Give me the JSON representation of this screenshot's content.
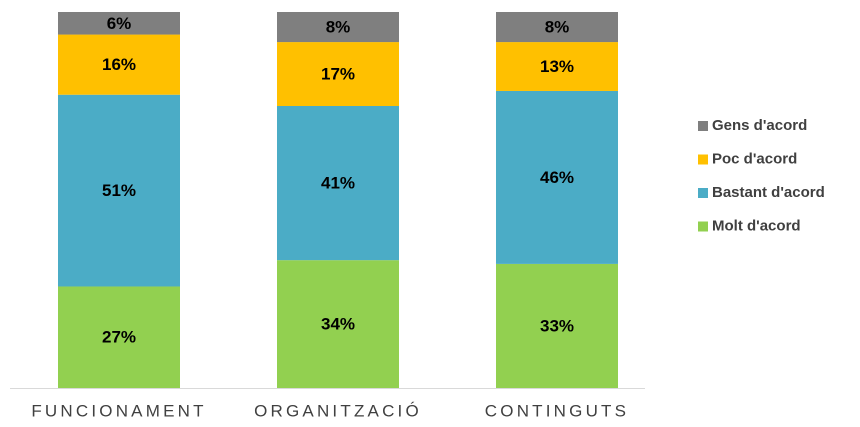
{
  "chart_data": {
    "type": "stacked_bar",
    "categories": [
      "FUNCIONAMENT",
      "ORGANITZACIÓ",
      "CONTINGUTS"
    ],
    "series": [
      {
        "name": "Molt d'acord",
        "color": "#92d050",
        "values": [
          27,
          34,
          33
        ],
        "value_labels": [
          "27%",
          "34%",
          "33%"
        ]
      },
      {
        "name": "Bastant d'acord",
        "color": "#4bacc6",
        "values": [
          51,
          41,
          46
        ],
        "value_labels": [
          "51%",
          "41%",
          "46%"
        ]
      },
      {
        "name": "Poc d'acord",
        "color": "#ffc000",
        "values": [
          16,
          17,
          13
        ],
        "value_labels": [
          "16%",
          "17%",
          "13%"
        ]
      },
      {
        "name": "Gens d'acord",
        "color": "#7f7f7f",
        "values": [
          6,
          8,
          8
        ],
        "value_labels": [
          "6%",
          "8%",
          "8%"
        ]
      }
    ],
    "legend": "right"
  }
}
